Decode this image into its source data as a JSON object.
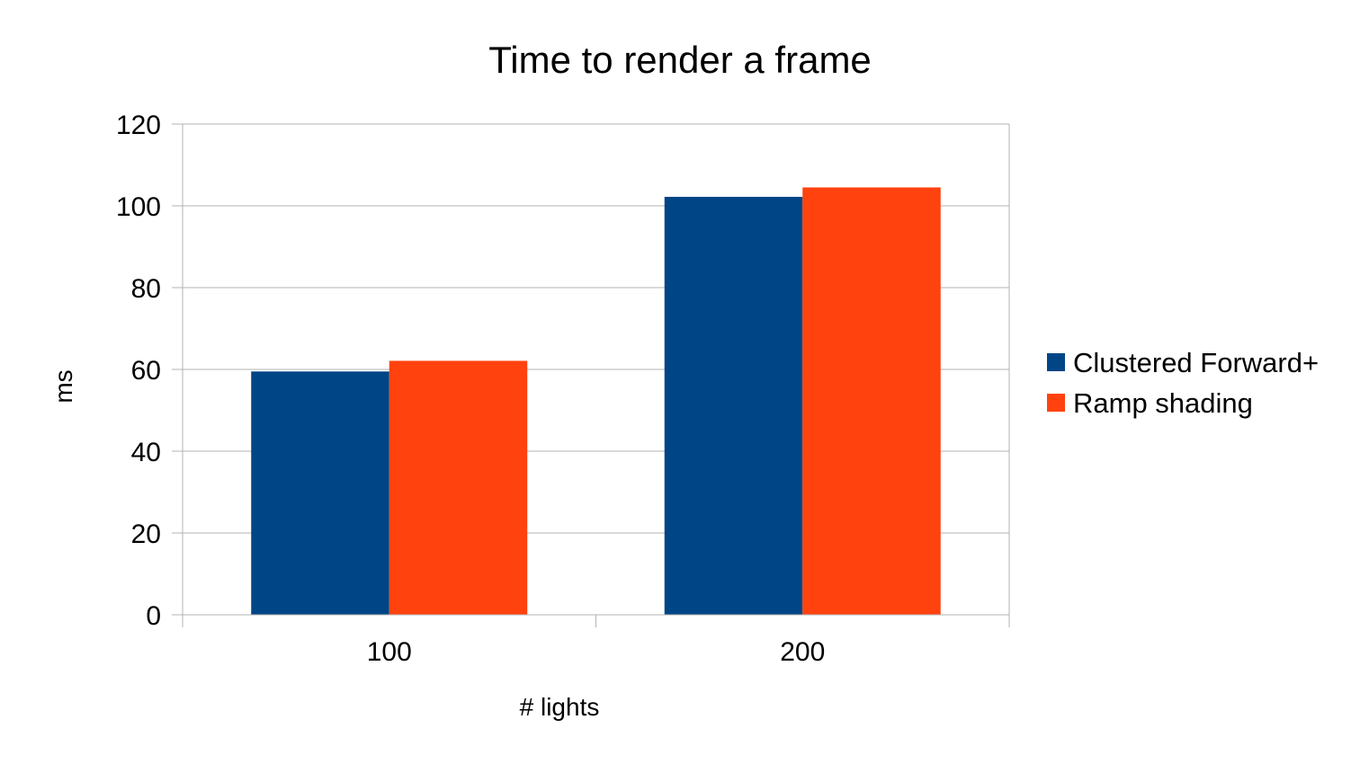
{
  "chart_data": {
    "type": "bar",
    "title": "Time to render a frame",
    "xlabel": "# lights",
    "ylabel": "ms",
    "categories": [
      "100",
      "200"
    ],
    "series": [
      {
        "name": "Clustered Forward+",
        "color": "#004586",
        "values": [
          59.5,
          102.2
        ]
      },
      {
        "name": "Ramp shading",
        "color": "#ff420e",
        "values": [
          62.1,
          104.5
        ]
      }
    ],
    "ylim": [
      0,
      120
    ],
    "yticks": [
      0,
      20,
      40,
      60,
      80,
      100,
      120
    ],
    "grid": true,
    "legend_position": "right"
  }
}
